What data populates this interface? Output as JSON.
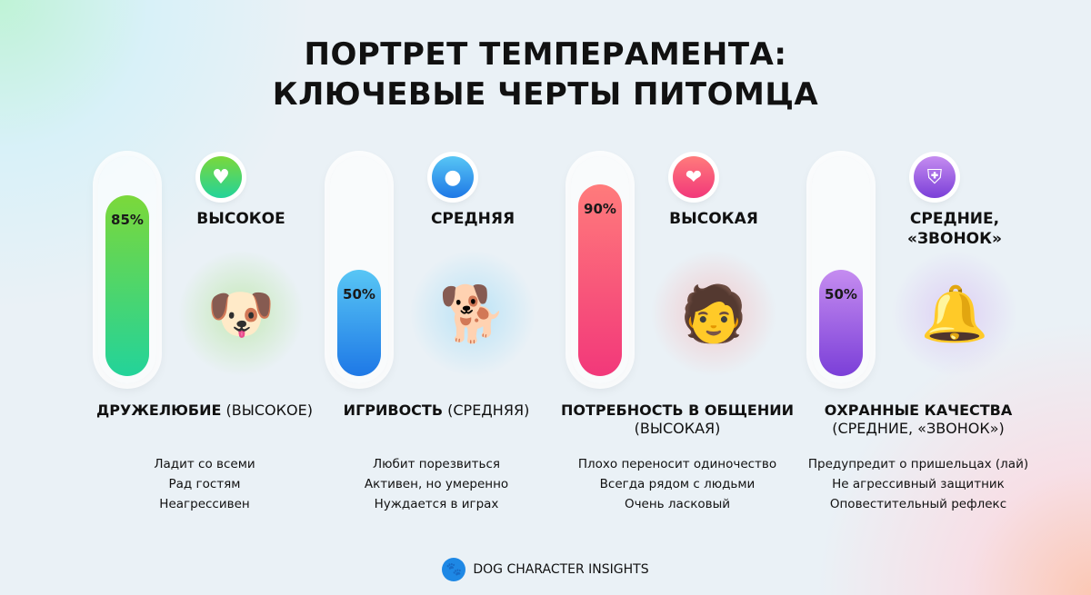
{
  "title": {
    "line1": "ПОРТРЕТ ТЕМПЕРАМЕНТА:",
    "line2": "КЛЮЧЕВЫЕ ЧЕРТЫ ПИТОМЦА"
  },
  "traits": [
    {
      "percent": 85,
      "percent_label": "85%",
      "level": "ВЫСОКОЕ",
      "icon": "heart-icon",
      "color": "#7bd83a",
      "color2": "#23d39a",
      "name_bold": "ДРУЖЕЛЮБИЕ",
      "name_rest": "(ВЫСОКОЕ)",
      "items": [
        "Ладит со всеми",
        "Рад гостям",
        "Неагрессивен"
      ]
    },
    {
      "percent": 50,
      "percent_label": "50%",
      "level": "СРЕДНЯЯ",
      "icon": "ball-icon",
      "color": "#58c6f5",
      "color2": "#1e78e6",
      "name_bold": "ИГРИВОСТЬ",
      "name_rest": "(СРЕДНЯЯ)",
      "items": [
        "Любит порезвиться",
        "Активен, но умеренно",
        "Нуждается в играх"
      ]
    },
    {
      "percent": 90,
      "percent_label": "90%",
      "level": "ВЫСОКАЯ",
      "icon": "person-dog-icon",
      "color": "#ff7b7b",
      "color2": "#f2387a",
      "name_bold": "ПОТРЕБНОСТЬ В ОБЩЕНИИ",
      "name_rest": "(ВЫСОКАЯ)",
      "items": [
        "Плохо переносит одиночество",
        "Всегда рядом с людьми",
        "Очень ласковый"
      ]
    },
    {
      "percent": 50,
      "percent_label": "50%",
      "level": "СРЕДНИЕ, «ЗВОНОК»",
      "icon": "shield-icon",
      "color": "#c58cf0",
      "color2": "#7b3fd8",
      "name_bold": "ОХРАННЫЕ КАЧЕСТВА",
      "name_rest": "(СРЕДНИЕ, «ЗВОНОК»)",
      "items": [
        "Предупредит о пришельцах (лай)",
        "Не агрессивный защитник",
        "Оповестительный рефлекс"
      ]
    }
  ],
  "footer": {
    "brand": "DOG CHARACTER INSIGHTS",
    "icon": "paw-icon"
  }
}
